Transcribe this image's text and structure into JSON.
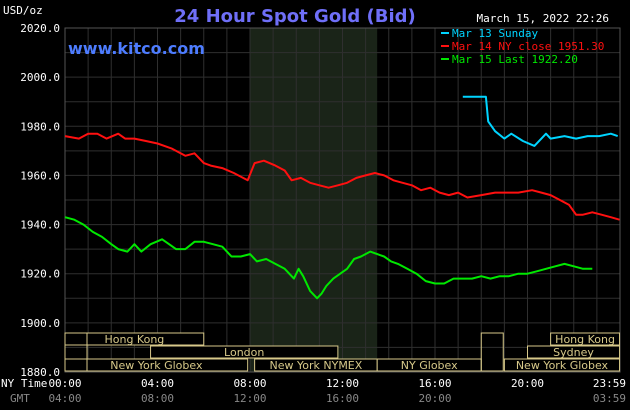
{
  "chart_data": {
    "type": "line",
    "title": "24 Hour Spot Gold (Bid)",
    "unit_label": "USD/oz",
    "source": "www.kitco.com",
    "timestamp": "March 15, 2022 22:26",
    "ylim": [
      1880,
      2020
    ],
    "yticks": [
      "2020.0",
      "2000.0",
      "1980.0",
      "1960.0",
      "1940.0",
      "1920.0",
      "1900.0",
      "1880.0"
    ],
    "xlim": [
      0,
      24
    ],
    "xticks_top": [
      "00:00",
      "04:00",
      "08:00",
      "12:00",
      "16:00",
      "20:00",
      "23:59"
    ],
    "xticks_bottom": [
      "04:00",
      "08:00",
      "12:00",
      "16:00",
      "20:00",
      "03:59"
    ],
    "xlabel_top": "NY Time",
    "xlabel_bottom": "GMT",
    "grid": true,
    "legend_position": "top-right",
    "highlight_band": [
      8.0,
      13.5
    ],
    "series": [
      {
        "name": "Mar 13 Sunday",
        "color": "#00d4ff",
        "points": [
          [
            17.2,
            1992
          ],
          [
            18.2,
            1992
          ],
          [
            18.3,
            1982
          ],
          [
            18.6,
            1978
          ],
          [
            19.0,
            1975
          ],
          [
            19.3,
            1977
          ],
          [
            19.8,
            1974
          ],
          [
            20.3,
            1972
          ],
          [
            20.6,
            1975
          ],
          [
            20.8,
            1977
          ],
          [
            21.0,
            1975
          ],
          [
            21.6,
            1976
          ],
          [
            22.1,
            1975
          ],
          [
            22.6,
            1976
          ],
          [
            23.1,
            1976
          ],
          [
            23.6,
            1977
          ],
          [
            23.9,
            1976
          ]
        ]
      },
      {
        "name": "Mar 14 NY close 1951.30",
        "color": "#ff1010",
        "points": [
          [
            0.0,
            1976
          ],
          [
            0.6,
            1975
          ],
          [
            1.0,
            1977
          ],
          [
            1.4,
            1977
          ],
          [
            1.8,
            1975
          ],
          [
            2.3,
            1977
          ],
          [
            2.6,
            1975
          ],
          [
            3.0,
            1975
          ],
          [
            3.5,
            1974
          ],
          [
            4.0,
            1973
          ],
          [
            4.3,
            1972
          ],
          [
            4.6,
            1971
          ],
          [
            5.0,
            1969
          ],
          [
            5.2,
            1968
          ],
          [
            5.6,
            1969
          ],
          [
            6.0,
            1965
          ],
          [
            6.3,
            1964
          ],
          [
            6.8,
            1963
          ],
          [
            7.3,
            1961
          ],
          [
            7.7,
            1959
          ],
          [
            7.9,
            1958
          ],
          [
            8.2,
            1965
          ],
          [
            8.6,
            1966
          ],
          [
            9.1,
            1964
          ],
          [
            9.5,
            1962
          ],
          [
            9.8,
            1958
          ],
          [
            10.2,
            1959
          ],
          [
            10.6,
            1957
          ],
          [
            11.0,
            1956
          ],
          [
            11.4,
            1955
          ],
          [
            11.8,
            1956
          ],
          [
            12.2,
            1957
          ],
          [
            12.6,
            1959
          ],
          [
            13.0,
            1960
          ],
          [
            13.4,
            1961
          ],
          [
            13.8,
            1960
          ],
          [
            14.2,
            1958
          ],
          [
            14.6,
            1957
          ],
          [
            15.0,
            1956
          ],
          [
            15.4,
            1954
          ],
          [
            15.8,
            1955
          ],
          [
            16.2,
            1953
          ],
          [
            16.6,
            1952
          ],
          [
            17.0,
            1953
          ],
          [
            17.4,
            1951
          ],
          [
            18.0,
            1952
          ],
          [
            18.6,
            1953
          ],
          [
            19.0,
            1953
          ],
          [
            19.6,
            1953
          ],
          [
            20.2,
            1954
          ],
          [
            20.6,
            1953
          ],
          [
            21.0,
            1952
          ],
          [
            21.4,
            1950
          ],
          [
            21.8,
            1948
          ],
          [
            22.1,
            1944
          ],
          [
            22.4,
            1944
          ],
          [
            22.8,
            1945
          ],
          [
            23.2,
            1944
          ],
          [
            23.6,
            1943
          ],
          [
            23.98,
            1942
          ]
        ]
      },
      {
        "name": "Mar 15 Last 1922.20",
        "color": "#00e800",
        "points": [
          [
            0.0,
            1943
          ],
          [
            0.4,
            1942
          ],
          [
            0.8,
            1940
          ],
          [
            1.2,
            1937
          ],
          [
            1.6,
            1935
          ],
          [
            2.0,
            1932
          ],
          [
            2.3,
            1930
          ],
          [
            2.7,
            1929
          ],
          [
            3.0,
            1932
          ],
          [
            3.3,
            1929
          ],
          [
            3.7,
            1932
          ],
          [
            4.2,
            1934
          ],
          [
            4.5,
            1932
          ],
          [
            4.8,
            1930
          ],
          [
            5.2,
            1930
          ],
          [
            5.6,
            1933
          ],
          [
            6.0,
            1933
          ],
          [
            6.4,
            1932
          ],
          [
            6.8,
            1931
          ],
          [
            7.2,
            1927
          ],
          [
            7.6,
            1927
          ],
          [
            8.0,
            1928
          ],
          [
            8.3,
            1925
          ],
          [
            8.7,
            1926
          ],
          [
            9.1,
            1924
          ],
          [
            9.5,
            1922
          ],
          [
            9.9,
            1918
          ],
          [
            10.1,
            1922
          ],
          [
            10.3,
            1919
          ],
          [
            10.6,
            1913
          ],
          [
            10.9,
            1910
          ],
          [
            11.1,
            1912
          ],
          [
            11.3,
            1915
          ],
          [
            11.6,
            1918
          ],
          [
            11.9,
            1920
          ],
          [
            12.2,
            1922
          ],
          [
            12.5,
            1926
          ],
          [
            12.8,
            1927
          ],
          [
            13.2,
            1929
          ],
          [
            13.5,
            1928
          ],
          [
            13.8,
            1927
          ],
          [
            14.1,
            1925
          ],
          [
            14.4,
            1924
          ],
          [
            14.8,
            1922
          ],
          [
            15.2,
            1920
          ],
          [
            15.6,
            1917
          ],
          [
            16.0,
            1916
          ],
          [
            16.4,
            1916
          ],
          [
            16.8,
            1918
          ],
          [
            17.2,
            1918
          ],
          [
            17.6,
            1918
          ],
          [
            18.0,
            1919
          ],
          [
            18.4,
            1918
          ],
          [
            18.8,
            1919
          ],
          [
            19.2,
            1919
          ],
          [
            19.6,
            1920
          ],
          [
            20.0,
            1920
          ],
          [
            20.4,
            1921
          ],
          [
            20.8,
            1922
          ],
          [
            21.2,
            1923
          ],
          [
            21.6,
            1924
          ],
          [
            22.0,
            1923
          ],
          [
            22.4,
            1922
          ],
          [
            22.8,
            1922
          ]
        ]
      }
    ],
    "markets": [
      {
        "label": "Hong Kong",
        "row": 0,
        "start": 0.0,
        "end": 6.0
      },
      {
        "label": "Hong Kong",
        "row": 0,
        "start": 21.0,
        "end": 23.98
      },
      {
        "label": "London",
        "row": 1,
        "start": 3.7,
        "end": 11.8
      },
      {
        "label": "Sydney",
        "row": 1,
        "start": 20.0,
        "end": 23.98
      },
      {
        "label": "New York Globex",
        "row": 2,
        "start": 0.0,
        "end": 7.9
      },
      {
        "label": "New York NYMEX",
        "row": 2,
        "start": 8.2,
        "end": 13.5
      },
      {
        "label": "NY Globex",
        "row": 2,
        "start": 13.5,
        "end": 18.0
      },
      {
        "label": "New York Globex",
        "row": 2,
        "start": 19.0,
        "end": 23.98
      }
    ],
    "hours_markers": [
      0.0,
      18.0
    ]
  }
}
